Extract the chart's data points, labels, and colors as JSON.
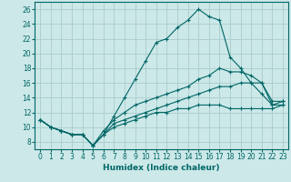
{
  "xlabel": "Humidex (Indice chaleur)",
  "bg_color": "#cce8e8",
  "grid_color": "#aacccc",
  "line_color": "#006666",
  "xlim": [
    -0.5,
    23.5
  ],
  "ylim": [
    7,
    27
  ],
  "xticks": [
    0,
    1,
    2,
    3,
    4,
    5,
    6,
    7,
    8,
    9,
    10,
    11,
    12,
    13,
    14,
    15,
    16,
    17,
    18,
    19,
    20,
    21,
    22,
    23
  ],
  "yticks": [
    8,
    10,
    12,
    14,
    16,
    18,
    20,
    22,
    24,
    26
  ],
  "lines": [
    {
      "x": [
        0,
        1,
        2,
        3,
        4,
        5,
        6,
        7,
        8,
        9,
        10,
        11,
        12,
        13,
        14,
        15,
        16,
        17,
        18,
        19,
        20,
        21,
        22,
        23
      ],
      "y": [
        11,
        10,
        9.5,
        9,
        9,
        7.5,
        9,
        11.5,
        14,
        16.5,
        19,
        21.5,
        22,
        23.5,
        24.5,
        26,
        25,
        24.5,
        19.5,
        18,
        16,
        14.5,
        13,
        13.5
      ]
    },
    {
      "x": [
        0,
        1,
        2,
        3,
        4,
        5,
        6,
        7,
        8,
        9,
        10,
        11,
        12,
        13,
        14,
        15,
        16,
        17,
        18,
        19,
        20,
        21,
        22,
        23
      ],
      "y": [
        11,
        10,
        9.5,
        9,
        9,
        7.5,
        9.5,
        11,
        12,
        13,
        13.5,
        14,
        14.5,
        15,
        15.5,
        16.5,
        17,
        18,
        17.5,
        17.5,
        17,
        16,
        13.5,
        13.5
      ]
    },
    {
      "x": [
        0,
        1,
        2,
        3,
        4,
        5,
        6,
        7,
        8,
        9,
        10,
        11,
        12,
        13,
        14,
        15,
        16,
        17,
        18,
        19,
        20,
        21,
        22,
        23
      ],
      "y": [
        11,
        10,
        9.5,
        9,
        9,
        7.5,
        9,
        10.5,
        11,
        11.5,
        12,
        12.5,
        13,
        13.5,
        14,
        14.5,
        15,
        15.5,
        15.5,
        16,
        16,
        16,
        13,
        13
      ]
    },
    {
      "x": [
        0,
        1,
        2,
        3,
        4,
        5,
        6,
        7,
        8,
        9,
        10,
        11,
        12,
        13,
        14,
        15,
        16,
        17,
        18,
        19,
        20,
        21,
        22,
        23
      ],
      "y": [
        11,
        10,
        9.5,
        9,
        9,
        7.5,
        9,
        10,
        10.5,
        11,
        11.5,
        12,
        12,
        12.5,
        12.5,
        13,
        13,
        13,
        12.5,
        12.5,
        12.5,
        12.5,
        12.5,
        13
      ]
    }
  ]
}
